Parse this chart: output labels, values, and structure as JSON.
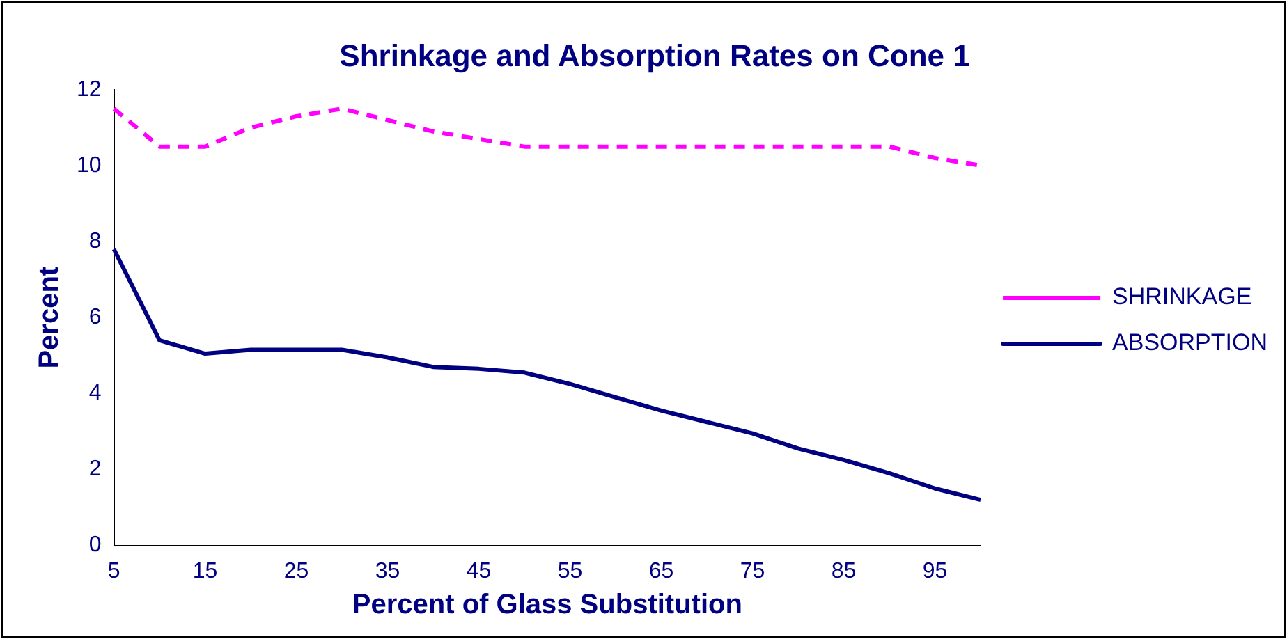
{
  "chart_data": {
    "type": "line",
    "title": "Shrinkage and Absorption Rates on Cone 1",
    "xlabel": "Percent of Glass Substitution",
    "ylabel": "Percent",
    "categories": [
      "5",
      null,
      "15",
      null,
      "25",
      null,
      "35",
      null,
      "45",
      null,
      "55",
      null,
      "65",
      null,
      "75",
      null,
      "85",
      null,
      "95",
      null
    ],
    "series": [
      {
        "name": "SHRINKAGE",
        "color": "#ff00ff",
        "line_style": "dashed",
        "values": [
          11.5,
          10.5,
          10.5,
          11,
          11.3,
          11.5,
          11.2,
          10.9,
          10.7,
          10.5,
          10.5,
          10.5,
          10.5,
          10.5,
          10.5,
          10.5,
          10.5,
          10.5,
          10.2,
          10.0
        ]
      },
      {
        "name": "ABSORPTION",
        "color": "#000080",
        "line_style": "solid",
        "values": [
          7.8,
          5.4,
          5.05,
          5.15,
          5.15,
          5.15,
          4.95,
          4.7,
          4.65,
          4.55,
          4.25,
          3.9,
          3.55,
          3.25,
          2.95,
          2.55,
          2.25,
          1.9,
          1.5,
          1.2
        ]
      }
    ],
    "ylim": [
      0,
      12
    ],
    "yticks": [
      0,
      2,
      4,
      6,
      8,
      10,
      12
    ],
    "grid": false,
    "legend": "right",
    "marker": "none"
  }
}
